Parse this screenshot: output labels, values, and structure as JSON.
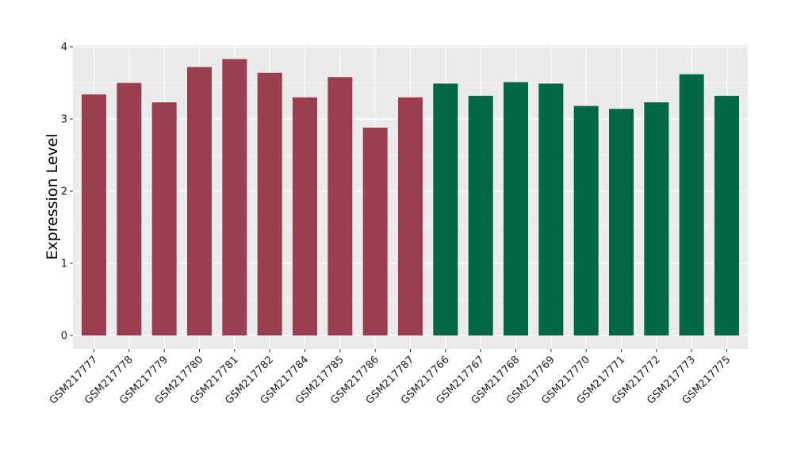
{
  "chart_data": {
    "type": "bar",
    "title": "",
    "xlabel": "",
    "ylabel": "Expression Level",
    "ylim": [
      0,
      4
    ],
    "yticks": [
      0,
      1,
      2,
      3,
      4
    ],
    "grid": true,
    "legend": "none",
    "categories": [
      "GSM217777",
      "GSM217778",
      "GSM217779",
      "GSM217780",
      "GSM217781",
      "GSM217782",
      "GSM217784",
      "GSM217785",
      "GSM217786",
      "GSM217787",
      "GSM217766",
      "GSM217767",
      "GSM217768",
      "GSM217769",
      "GSM217770",
      "GSM217771",
      "GSM217772",
      "GSM217773",
      "GSM217775"
    ],
    "values": [
      3.34,
      3.5,
      3.23,
      3.72,
      3.83,
      3.64,
      3.3,
      3.58,
      2.88,
      3.3,
      3.49,
      3.32,
      3.51,
      3.49,
      3.18,
      3.14,
      3.23,
      3.62,
      3.32
    ],
    "bar_colors": [
      "#9a3f4f",
      "#9a3f4f",
      "#9a3f4f",
      "#9a3f4f",
      "#9a3f4f",
      "#9a3f4f",
      "#9a3f4f",
      "#9a3f4f",
      "#9a3f4f",
      "#9a3f4f",
      "#006644",
      "#006644",
      "#006644",
      "#006644",
      "#006644",
      "#006644",
      "#006644",
      "#006644",
      "#006644"
    ],
    "panel_background": "#ebebeb",
    "grid_color": "#ffffff"
  }
}
